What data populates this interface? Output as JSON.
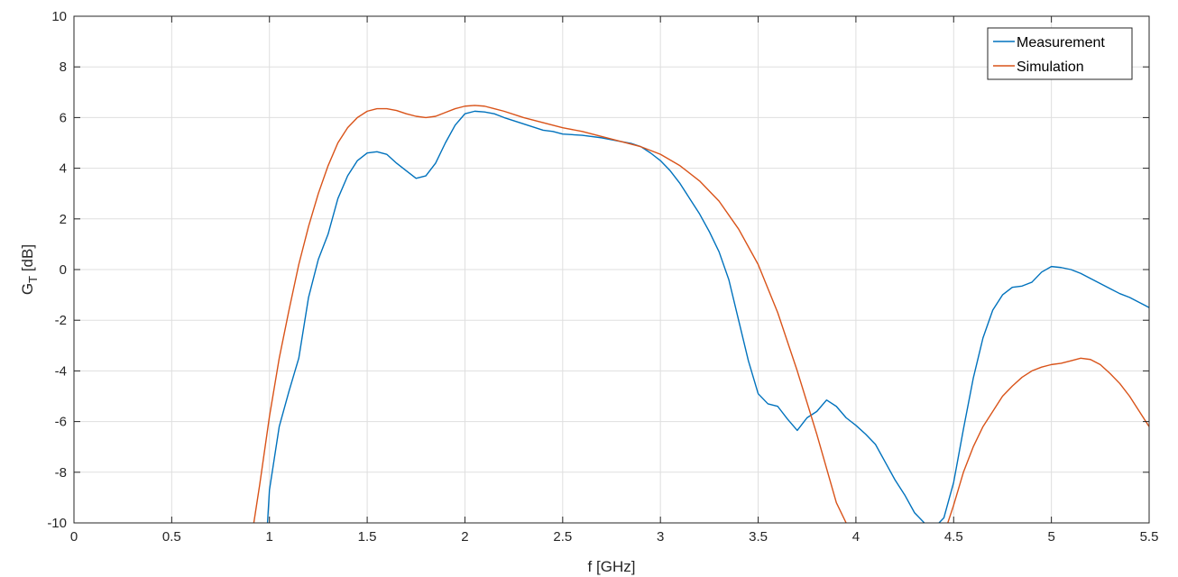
{
  "chart_data": {
    "type": "line",
    "title": "",
    "xlabel": "f [GHz]",
    "ylabel_main": "G",
    "ylabel_sub": "T",
    "ylabel_unit": " [dB]",
    "xlim": [
      0,
      5.5
    ],
    "ylim": [
      -10,
      10
    ],
    "xticks": [
      0,
      0.5,
      1,
      1.5,
      2,
      2.5,
      3,
      3.5,
      4,
      4.5,
      5,
      5.5
    ],
    "xtick_labels": [
      "0",
      "0.5",
      "1",
      "1.5",
      "2",
      "2.5",
      "3",
      "3.5",
      "4",
      "4.5",
      "5",
      "5.5"
    ],
    "yticks": [
      -10,
      -8,
      -6,
      -4,
      -2,
      0,
      2,
      4,
      6,
      8,
      10
    ],
    "ytick_labels": [
      "-10",
      "-8",
      "-6",
      "-4",
      "-2",
      "0",
      "2",
      "4",
      "6",
      "8",
      "10"
    ],
    "grid": true,
    "legend_position": "top-right",
    "series": [
      {
        "name": "Measurement",
        "color": "#0072BD",
        "x": [
          0.99,
          1.0,
          1.05,
          1.1,
          1.15,
          1.2,
          1.25,
          1.3,
          1.35,
          1.4,
          1.45,
          1.5,
          1.55,
          1.6,
          1.65,
          1.7,
          1.75,
          1.8,
          1.85,
          1.9,
          1.95,
          2.0,
          2.05,
          2.1,
          2.15,
          2.2,
          2.3,
          2.4,
          2.45,
          2.5,
          2.6,
          2.7,
          2.8,
          2.85,
          2.9,
          2.95,
          3.0,
          3.05,
          3.1,
          3.15,
          3.2,
          3.25,
          3.3,
          3.35,
          3.4,
          3.45,
          3.5,
          3.55,
          3.6,
          3.65,
          3.7,
          3.75,
          3.8,
          3.85,
          3.9,
          3.95,
          4.0,
          4.05,
          4.1,
          4.15,
          4.2,
          4.25,
          4.3,
          4.35,
          4.4,
          4.45,
          4.5,
          4.55,
          4.6,
          4.65,
          4.7,
          4.75,
          4.8,
          4.85,
          4.9,
          4.95,
          5.0,
          5.05,
          5.1,
          5.15,
          5.2,
          5.25,
          5.3,
          5.35,
          5.4,
          5.45,
          5.5
        ],
        "y": [
          -10.0,
          -8.7,
          -6.2,
          -4.8,
          -3.5,
          -1.1,
          0.4,
          1.4,
          2.8,
          3.7,
          4.3,
          4.6,
          4.65,
          4.55,
          4.2,
          3.9,
          3.6,
          3.7,
          4.2,
          5.0,
          5.7,
          6.15,
          6.25,
          6.22,
          6.15,
          6.0,
          5.75,
          5.5,
          5.45,
          5.35,
          5.3,
          5.2,
          5.05,
          4.98,
          4.85,
          4.6,
          4.3,
          3.9,
          3.4,
          2.8,
          2.2,
          1.5,
          0.7,
          -0.4,
          -2.0,
          -3.6,
          -4.9,
          -5.3,
          -5.4,
          -5.9,
          -6.35,
          -5.85,
          -5.6,
          -5.15,
          -5.4,
          -5.85,
          -6.15,
          -6.5,
          -6.9,
          -7.6,
          -8.3,
          -8.9,
          -9.6,
          -10.0,
          -10.2,
          -9.8,
          -8.4,
          -6.3,
          -4.3,
          -2.7,
          -1.6,
          -1.0,
          -0.7,
          -0.65,
          -0.5,
          -0.1,
          0.12,
          0.08,
          0.0,
          -0.15,
          -0.35,
          -0.55,
          -0.75,
          -0.95,
          -1.1,
          -1.3,
          -1.5
        ]
      },
      {
        "name": "Simulation",
        "color": "#D95319",
        "x": [
          0.92,
          0.95,
          1.0,
          1.05,
          1.1,
          1.15,
          1.2,
          1.25,
          1.3,
          1.35,
          1.4,
          1.45,
          1.5,
          1.55,
          1.6,
          1.65,
          1.7,
          1.75,
          1.8,
          1.85,
          1.9,
          1.95,
          2.0,
          2.05,
          2.1,
          2.15,
          2.2,
          2.3,
          2.4,
          2.5,
          2.6,
          2.7,
          2.8,
          2.9,
          3.0,
          3.1,
          3.2,
          3.3,
          3.4,
          3.5,
          3.6,
          3.7,
          3.8,
          3.9,
          3.95,
          4.47,
          4.5,
          4.55,
          4.6,
          4.65,
          4.7,
          4.75,
          4.8,
          4.85,
          4.9,
          4.95,
          5.0,
          5.05,
          5.1,
          5.15,
          5.2,
          5.25,
          5.3,
          5.35,
          5.4,
          5.45,
          5.5
        ],
        "y": [
          -10.0,
          -8.5,
          -5.8,
          -3.5,
          -1.6,
          0.2,
          1.7,
          3.0,
          4.1,
          5.0,
          5.6,
          6.0,
          6.25,
          6.35,
          6.35,
          6.28,
          6.15,
          6.05,
          6.0,
          6.05,
          6.2,
          6.35,
          6.45,
          6.48,
          6.45,
          6.35,
          6.25,
          6.0,
          5.8,
          5.6,
          5.45,
          5.25,
          5.05,
          4.85,
          4.55,
          4.1,
          3.5,
          2.7,
          1.6,
          0.2,
          -1.7,
          -4.0,
          -6.5,
          -9.2,
          -10.0,
          -10.0,
          -9.3,
          -8.0,
          -7.0,
          -6.2,
          -5.6,
          -5.0,
          -4.6,
          -4.25,
          -4.0,
          -3.85,
          -3.75,
          -3.7,
          -3.6,
          -3.5,
          -3.55,
          -3.75,
          -4.1,
          -4.5,
          -5.0,
          -5.6,
          -6.2
        ]
      }
    ]
  }
}
